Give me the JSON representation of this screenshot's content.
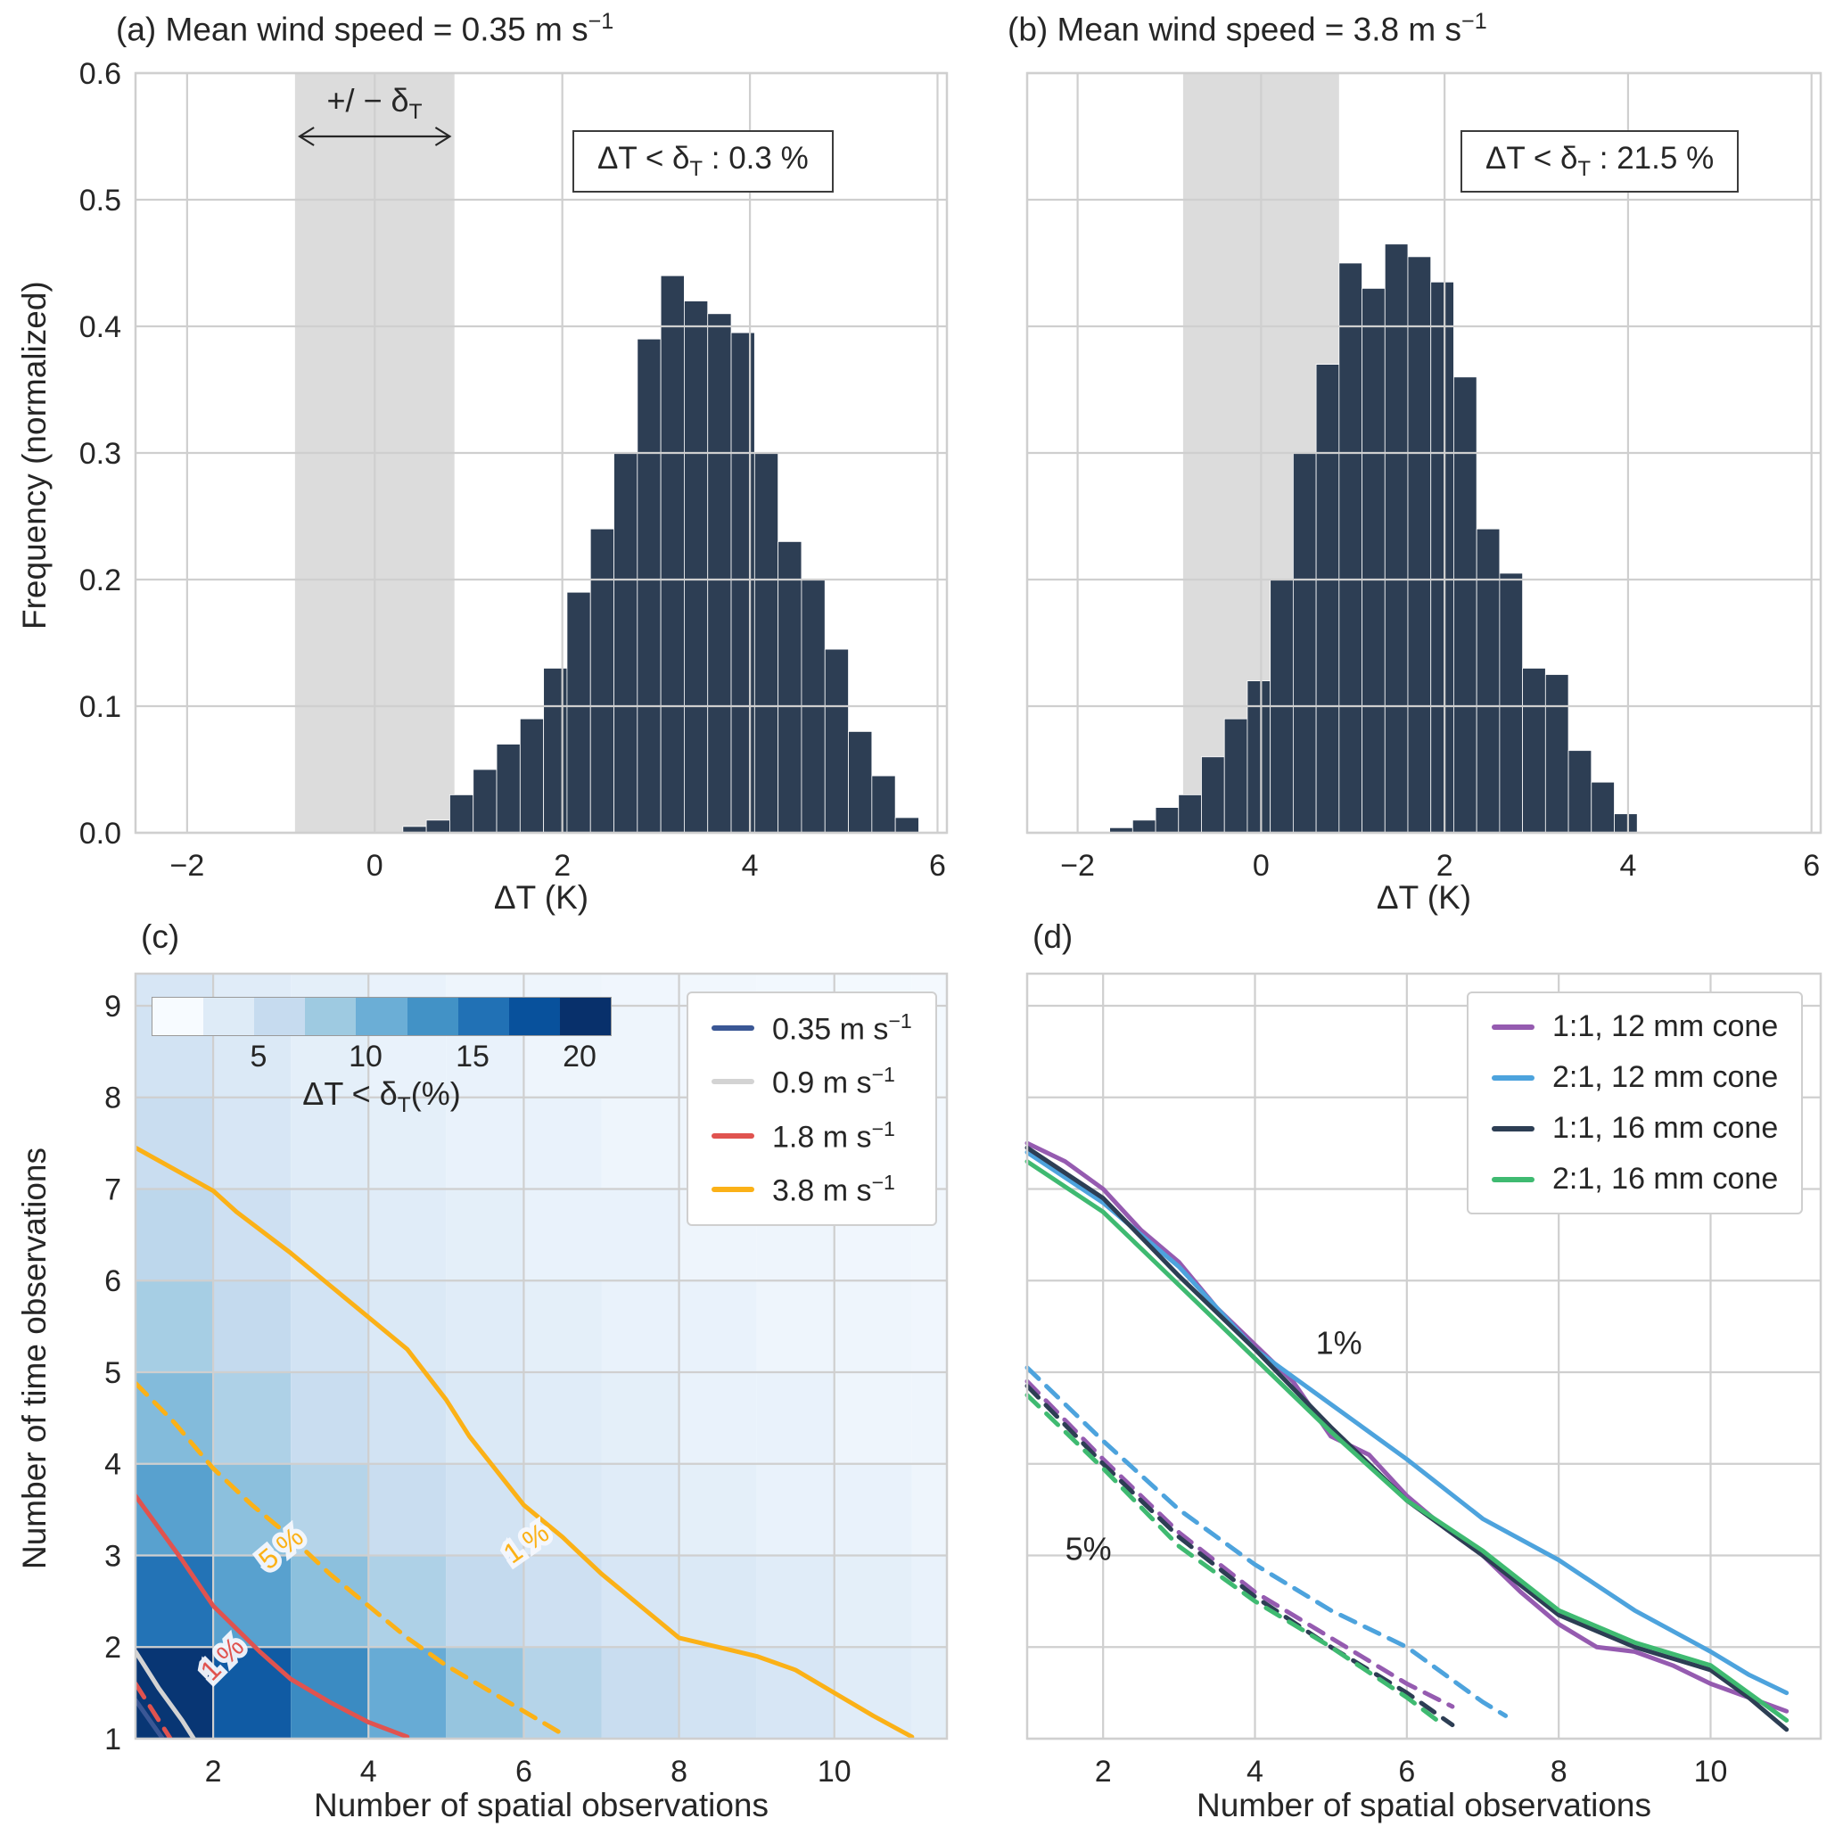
{
  "chart_data": [
    {
      "id": "a",
      "type": "bar",
      "title": {
        "text": "(a) Mean wind speed = 0.35 m s",
        "sup": "−1"
      },
      "xlabel": "ΔT (K)",
      "ylabel": "Frequency (normalized)",
      "xlim": [
        -2.55,
        6.1
      ],
      "ylim": [
        0,
        0.6
      ],
      "xticks": [
        -2,
        0,
        2,
        4,
        6
      ],
      "yticks": [
        0,
        0.1,
        0.2,
        0.3,
        0.4,
        0.5,
        0.6
      ],
      "ytick_dec": 1,
      "bar_color": "#2d3e54",
      "band": {
        "x0": -0.85,
        "x1": 0.85,
        "color": "#dcdcdc"
      },
      "band_label": {
        "pre": "+/ − δ",
        "sub": "T"
      },
      "arrow": {
        "x0": -0.8,
        "x1": 0.8,
        "y": 0.55
      },
      "annotation": {
        "pre": "ΔT < δ",
        "sub": "T",
        "post": " : 0.3 %"
      },
      "bin_start": 0.3,
      "bin_width": 0.25,
      "values": [
        0.005,
        0.01,
        0.03,
        0.05,
        0.07,
        0.09,
        0.13,
        0.19,
        0.24,
        0.3,
        0.39,
        0.44,
        0.42,
        0.41,
        0.395,
        0.3,
        0.23,
        0.2,
        0.145,
        0.08,
        0.045,
        0.012
      ]
    },
    {
      "id": "b",
      "type": "bar",
      "title": {
        "text": "(b) Mean wind speed = 3.8 m s",
        "sup": "−1"
      },
      "xlabel": "ΔT (K)",
      "xlim": [
        -2.55,
        6.1
      ],
      "ylim": [
        0,
        0.6
      ],
      "xticks": [
        -2,
        0,
        2,
        4,
        6
      ],
      "yticks": [
        0,
        0.1,
        0.2,
        0.3,
        0.4,
        0.5,
        0.6
      ],
      "bar_color": "#2d3e54",
      "band": {
        "x0": -0.85,
        "x1": 0.85,
        "color": "#dcdcdc"
      },
      "annotation": {
        "pre": "ΔT < δ",
        "sub": "T",
        "post": " : 21.5 %"
      },
      "bin_start": -1.65,
      "bin_width": 0.25,
      "values": [
        0.004,
        0.01,
        0.02,
        0.03,
        0.06,
        0.09,
        0.12,
        0.2,
        0.3,
        0.37,
        0.45,
        0.43,
        0.465,
        0.455,
        0.435,
        0.36,
        0.24,
        0.205,
        0.13,
        0.125,
        0.065,
        0.04,
        0.015
      ]
    },
    {
      "id": "c",
      "type": "heatmap",
      "panel_label": "(c)",
      "xlabel": "Number of spatial observations",
      "ylabel": "Number of time observations",
      "xlim": [
        1,
        11.45
      ],
      "ylim": [
        1,
        9.35
      ],
      "xticks": [
        2,
        4,
        6,
        8,
        10
      ],
      "yticks": [
        1,
        2,
        3,
        4,
        5,
        6,
        7,
        8,
        9
      ],
      "vmax": 21.5,
      "values_note": "rows y=1 (bottom) to y=9 (top), cols x=1..11, percent of dT<deltaT",
      "values": [
        [
          21,
          18,
          14,
          11,
          8.5,
          6.5,
          5,
          4,
          3.5,
          2.5,
          2
        ],
        [
          16,
          12,
          9,
          7,
          5.5,
          4.5,
          3.5,
          3,
          2.5,
          2,
          1.5
        ],
        [
          12,
          9,
          6.5,
          5,
          4,
          3,
          2.5,
          2,
          1.5,
          1.5,
          1
        ],
        [
          9.5,
          7,
          5,
          4,
          3,
          2.5,
          2,
          1.5,
          1.5,
          1,
          1
        ],
        [
          7.5,
          5.5,
          4,
          3,
          2.5,
          2,
          1.5,
          1.5,
          1,
          1,
          0.8
        ],
        [
          6,
          4.5,
          3,
          2.5,
          2,
          1.5,
          1.5,
          1,
          1,
          0.8,
          0.6
        ],
        [
          5,
          3.5,
          2.5,
          2,
          1.5,
          1.5,
          1,
          1,
          0.8,
          0.6,
          0.5
        ],
        [
          4,
          3,
          2,
          1.5,
          1.5,
          1,
          1,
          0.8,
          0.6,
          0.5,
          0.4
        ],
        [
          3.5,
          2.5,
          2,
          1.5,
          1,
          1,
          0.8,
          0.6,
          0.5,
          0.4,
          0.3
        ]
      ],
      "contours": [
        {
          "speed": "3.8",
          "level": "1 %",
          "color": "#fbb117",
          "style": "solid",
          "points": [
            [
              1,
              7.45
            ],
            [
              2,
              6.98
            ],
            [
              2.3,
              6.75
            ],
            [
              3,
              6.3
            ],
            [
              3.5,
              5.95
            ],
            [
              4,
              5.6
            ],
            [
              4.5,
              5.25
            ],
            [
              5,
              4.7
            ],
            [
              5.3,
              4.3
            ],
            [
              6,
              3.55
            ],
            [
              6.5,
              3.2
            ],
            [
              7,
              2.8
            ],
            [
              7.5,
              2.45
            ],
            [
              8,
              2.1
            ],
            [
              8.5,
              2.0
            ],
            [
              9,
              1.9
            ],
            [
              9.5,
              1.75
            ],
            [
              10,
              1.5
            ],
            [
              10.5,
              1.25
            ],
            [
              11,
              1.02
            ]
          ]
        },
        {
          "speed": "3.8",
          "level": "5 %",
          "color": "#fbb117",
          "style": "dashed",
          "points": [
            [
              1,
              4.88
            ],
            [
              1.5,
              4.45
            ],
            [
              2,
              3.95
            ],
            [
              2.5,
              3.55
            ],
            [
              3,
              3.2
            ],
            [
              3.5,
              2.8
            ],
            [
              4,
              2.45
            ],
            [
              4.5,
              2.1
            ],
            [
              5,
              1.8
            ],
            [
              5.5,
              1.55
            ],
            [
              6,
              1.3
            ],
            [
              6.5,
              1.05
            ]
          ]
        },
        {
          "speed": "1.8",
          "level": "1 %",
          "color": "#e0534f",
          "style": "solid",
          "points": [
            [
              1,
              3.65
            ],
            [
              1.3,
              3.3
            ],
            [
              1.6,
              2.95
            ],
            [
              2,
              2.45
            ],
            [
              2.3,
              2.2
            ],
            [
              2.6,
              1.95
            ],
            [
              3,
              1.65
            ],
            [
              3.5,
              1.4
            ],
            [
              4,
              1.18
            ],
            [
              4.5,
              1.02
            ]
          ]
        },
        {
          "speed": "1.8",
          "level": "5 %",
          "color": "#e0534f",
          "style": "dashed",
          "points": [
            [
              1,
              1.6
            ],
            [
              1.3,
              1.2
            ],
            [
              1.45,
              1.0
            ]
          ]
        },
        {
          "speed": "0.9",
          "level": "1 %",
          "color": "#d3d3d3",
          "style": "solid",
          "points": [
            [
              1,
              1.95
            ],
            [
              1.3,
              1.55
            ],
            [
              1.6,
              1.2
            ],
            [
              1.75,
              1.0
            ]
          ]
        },
        {
          "speed": "0.35",
          "level": "1 %",
          "color": "#3a5795",
          "style": "solid",
          "points": [
            [
              1,
              1.42
            ],
            [
              1.2,
              1.18
            ],
            [
              1.35,
              1.0
            ]
          ]
        }
      ],
      "labels": [
        {
          "text": "1 %",
          "x": 6.1,
          "y": 3.05,
          "rot": -35,
          "color": "#fbb117"
        },
        {
          "text": "5 %",
          "x": 2.95,
          "y": 3.0,
          "rot": -40,
          "color": "#fbb117"
        },
        {
          "text": "1 %",
          "x": 2.2,
          "y": 1.8,
          "rot": -45,
          "color": "#e0534f"
        }
      ],
      "legend": {
        "items": [
          {
            "label": "0.35 m s",
            "sup": "−1",
            "color": "#3a5795"
          },
          {
            "label": "0.9 m s",
            "sup": "−1",
            "color": "#d3d3d3"
          },
          {
            "label": "1.8 m s",
            "sup": "−1",
            "color": "#e0534f"
          },
          {
            "label": "3.8 m s",
            "sup": "−1",
            "color": "#fbb117"
          }
        ]
      },
      "colorbar": {
        "ticks": [
          5,
          10,
          15,
          20
        ],
        "vmax": 21.5,
        "label_pre": "ΔT < δ",
        "label_sub": "T",
        "label_post": "(%)"
      }
    },
    {
      "id": "d",
      "type": "line",
      "panel_label": "(d)",
      "xlabel": "Number of spatial observations",
      "xlim": [
        1,
        11.45
      ],
      "ylim": [
        1,
        9.35
      ],
      "xticks": [
        2,
        4,
        6,
        8,
        10
      ],
      "yticks": [
        1,
        2,
        3,
        4,
        5,
        6,
        7,
        8,
        9
      ],
      "series": [
        {
          "name": "1:1, 12 mm cone",
          "level": "1%",
          "color": "#955bb0",
          "style": "solid",
          "points": [
            [
              1,
              7.5
            ],
            [
              1.5,
              7.3
            ],
            [
              2,
              7.0
            ],
            [
              2.5,
              6.55
            ],
            [
              3,
              6.2
            ],
            [
              3.5,
              5.7
            ],
            [
              4,
              5.3
            ],
            [
              4.5,
              4.9
            ],
            [
              5,
              4.3
            ],
            [
              5.5,
              4.1
            ],
            [
              6,
              3.65
            ],
            [
              6.5,
              3.3
            ],
            [
              7,
              3.0
            ],
            [
              7.5,
              2.6
            ],
            [
              8,
              2.25
            ],
            [
              8.5,
              2.0
            ],
            [
              9,
              1.95
            ],
            [
              9.5,
              1.8
            ],
            [
              10,
              1.6
            ],
            [
              10.5,
              1.45
            ],
            [
              11,
              1.3
            ]
          ]
        },
        {
          "name": "2:1, 12 mm cone",
          "level": "1%",
          "color": "#4da3dd",
          "style": "solid",
          "points": [
            [
              1,
              7.4
            ],
            [
              2,
              6.85
            ],
            [
              3,
              6.15
            ],
            [
              4,
              5.25
            ],
            [
              4.5,
              4.95
            ],
            [
              5,
              4.65
            ],
            [
              6,
              4.05
            ],
            [
              7,
              3.4
            ],
            [
              8,
              2.95
            ],
            [
              9,
              2.4
            ],
            [
              10,
              1.95
            ],
            [
              10.5,
              1.7
            ],
            [
              11,
              1.5
            ]
          ]
        },
        {
          "name": "1:1, 16 mm cone",
          "level": "1%",
          "color": "#2d3e54",
          "style": "solid",
          "points": [
            [
              1,
              7.45
            ],
            [
              2,
              6.9
            ],
            [
              3,
              6.05
            ],
            [
              4,
              5.25
            ],
            [
              5,
              4.4
            ],
            [
              6,
              3.6
            ],
            [
              7,
              3.0
            ],
            [
              8,
              2.35
            ],
            [
              9,
              2.0
            ],
            [
              10,
              1.75
            ],
            [
              10.5,
              1.45
            ],
            [
              11,
              1.1
            ]
          ]
        },
        {
          "name": "2:1, 16 mm cone",
          "level": "1%",
          "color": "#3fba71",
          "style": "solid",
          "points": [
            [
              1,
              7.3
            ],
            [
              2,
              6.75
            ],
            [
              3,
              5.95
            ],
            [
              4,
              5.15
            ],
            [
              5,
              4.35
            ],
            [
              6,
              3.6
            ],
            [
              7,
              3.05
            ],
            [
              8,
              2.4
            ],
            [
              9,
              2.05
            ],
            [
              10,
              1.8
            ],
            [
              10.5,
              1.5
            ],
            [
              11,
              1.2
            ]
          ]
        },
        {
          "name": "2:1, 12 mm cone",
          "level": "5%",
          "color": "#4da3dd",
          "style": "dashed",
          "points": [
            [
              1,
              5.05
            ],
            [
              2,
              4.25
            ],
            [
              3,
              3.5
            ],
            [
              4,
              2.9
            ],
            [
              5,
              2.4
            ],
            [
              6,
              2.0
            ],
            [
              6.5,
              1.7
            ],
            [
              7,
              1.4
            ],
            [
              7.3,
              1.25
            ]
          ]
        },
        {
          "name": "1:1, 12 mm cone",
          "level": "5%",
          "color": "#955bb0",
          "style": "dashed",
          "points": [
            [
              1,
              4.9
            ],
            [
              2,
              4.05
            ],
            [
              3,
              3.25
            ],
            [
              4,
              2.6
            ],
            [
              5,
              2.1
            ],
            [
              6,
              1.6
            ],
            [
              6.6,
              1.35
            ]
          ]
        },
        {
          "name": "1:1, 16 mm cone",
          "level": "5%",
          "color": "#2d3e54",
          "style": "dashed",
          "points": [
            [
              1,
              4.85
            ],
            [
              2,
              4.0
            ],
            [
              3,
              3.2
            ],
            [
              4,
              2.55
            ],
            [
              5,
              2.0
            ],
            [
              6,
              1.5
            ],
            [
              6.6,
              1.15
            ]
          ]
        },
        {
          "name": "2:1, 16 mm cone",
          "level": "5%",
          "color": "#3fba71",
          "style": "dashed",
          "points": [
            [
              1,
              4.75
            ],
            [
              2,
              3.95
            ],
            [
              3,
              3.1
            ],
            [
              4,
              2.5
            ],
            [
              5,
              2.0
            ],
            [
              6,
              1.45
            ],
            [
              6.4,
              1.2
            ]
          ]
        }
      ],
      "labels": [
        {
          "text": "1%",
          "x": 4.8,
          "y": 5.2
        },
        {
          "text": "5%",
          "x": 1.5,
          "y": 2.95
        }
      ],
      "legend": {
        "items": [
          {
            "label": "1:1, 12 mm cone",
            "color": "#955bb0"
          },
          {
            "label": "2:1, 12 mm cone",
            "color": "#4da3dd"
          },
          {
            "label": "1:1, 16 mm cone",
            "color": "#2d3e54"
          },
          {
            "label": "2:1, 16 mm cone",
            "color": "#3fba71"
          }
        ]
      }
    }
  ]
}
